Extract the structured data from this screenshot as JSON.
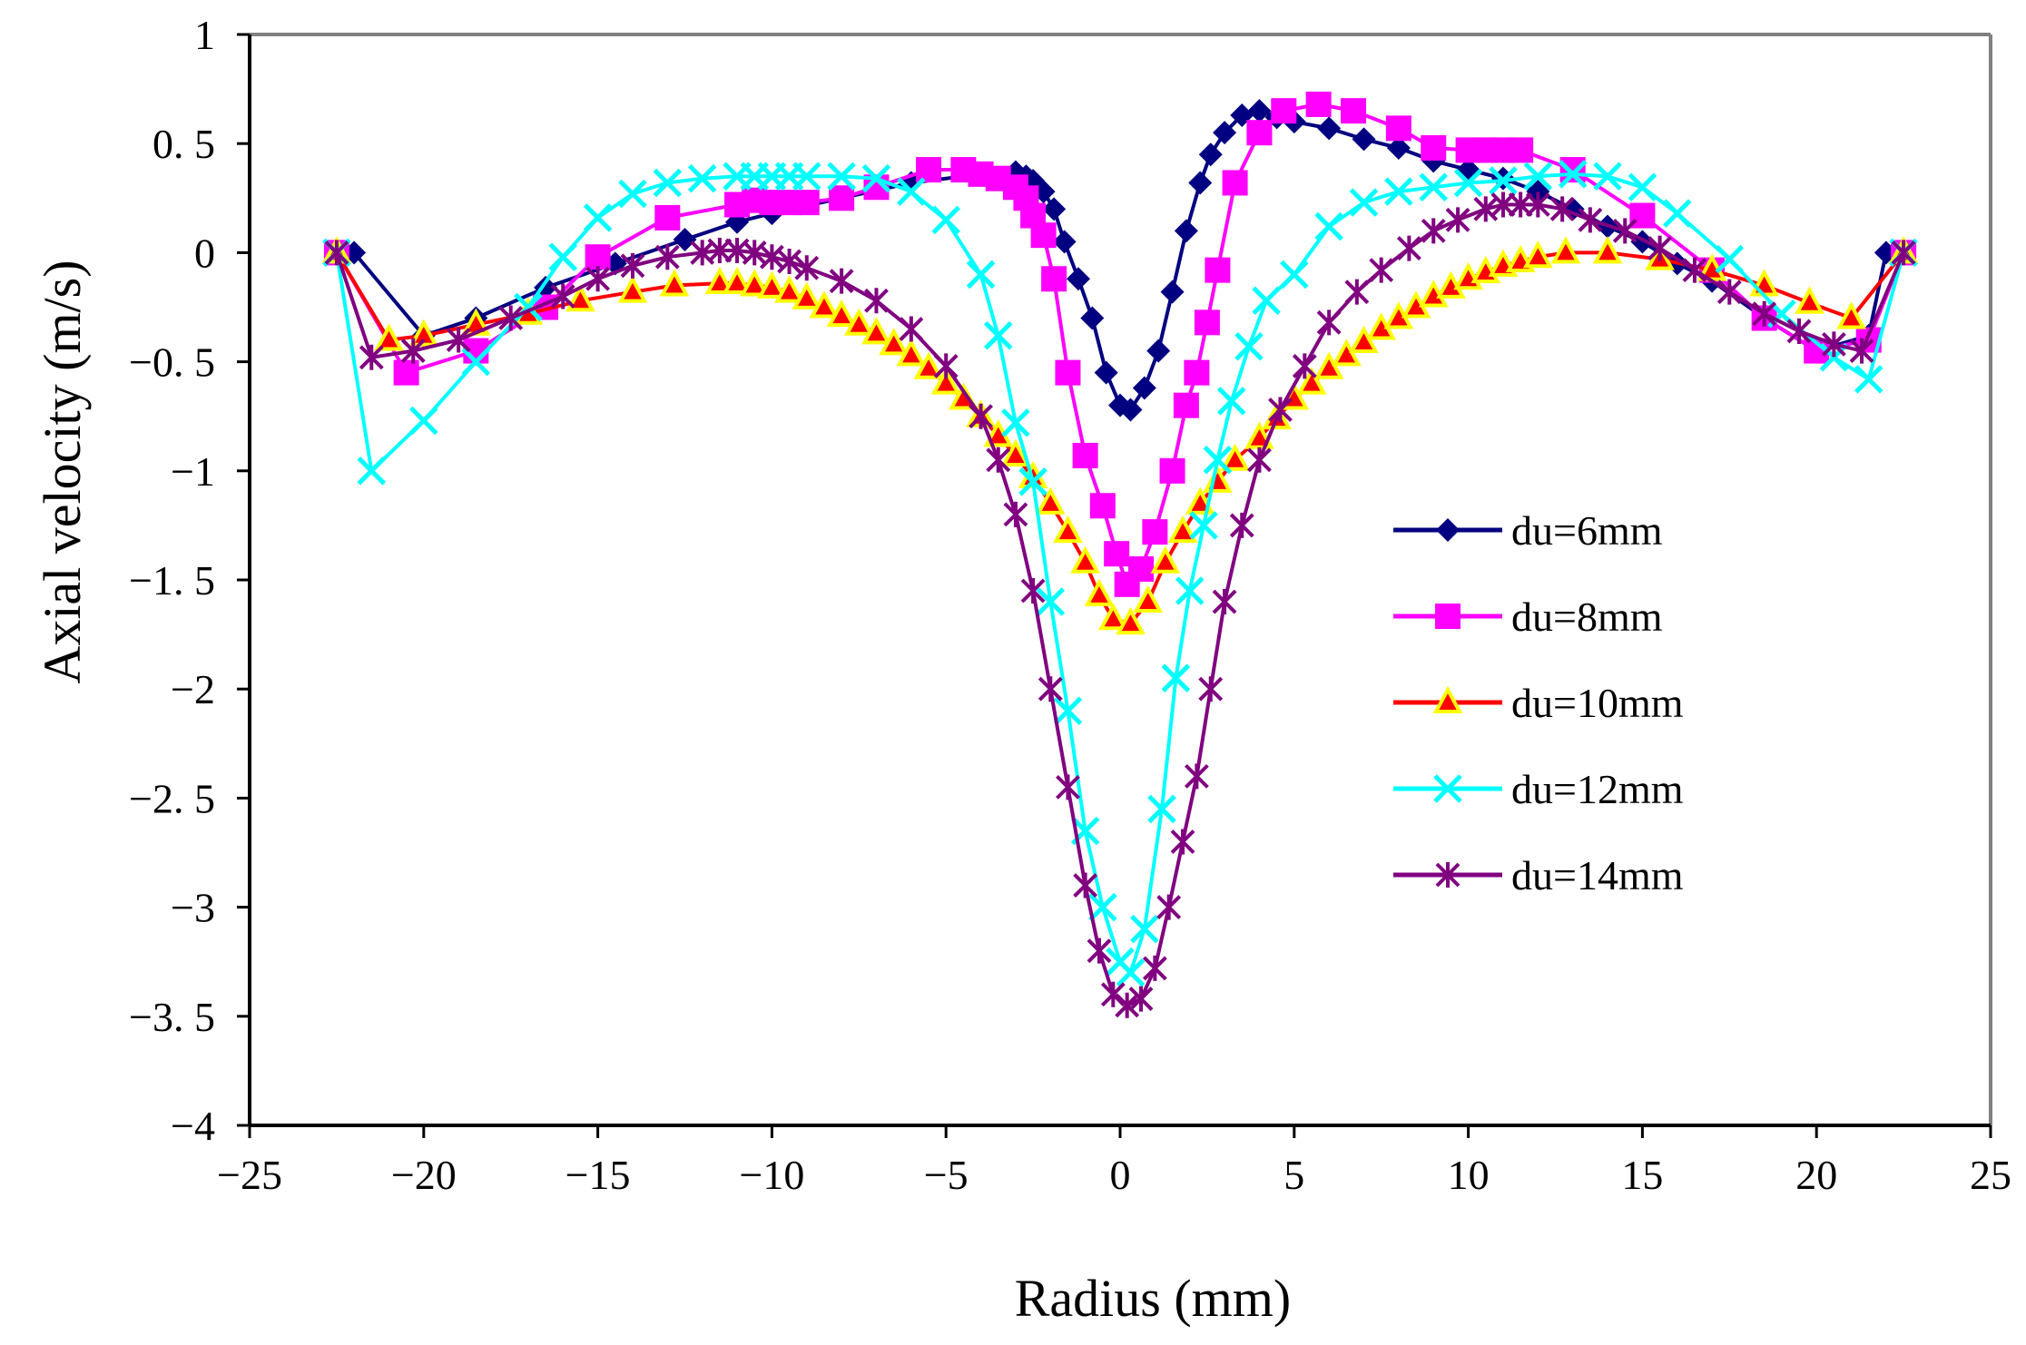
{
  "chart_data": {
    "type": "line",
    "title": "",
    "xlabel": "Radius (mm)",
    "ylabel": "Axial velocity (m/s)",
    "xlim": [
      -25,
      25
    ],
    "ylim": [
      -4,
      1
    ],
    "xticks": [
      -25,
      -20,
      -15,
      -10,
      -5,
      0,
      5,
      10,
      15,
      20,
      25
    ],
    "xtick_labels": [
      "−25",
      "−20",
      "−15",
      "−10",
      "−5",
      "0",
      "5",
      "10",
      "15",
      "20",
      "25"
    ],
    "yticks": [
      1,
      0.5,
      0,
      -0.5,
      -1,
      -1.5,
      -2,
      -2.5,
      -3,
      -3.5,
      -4
    ],
    "ytick_labels": [
      "1",
      "0. 5",
      "0",
      "−0. 5",
      "−1",
      "−1. 5",
      "−2",
      "−2. 5",
      "−3",
      "−3. 5",
      "−4"
    ],
    "grid": false,
    "legend_position": "right",
    "series": [
      {
        "name": "du=6mm",
        "color": "#000080",
        "marker": "diamond",
        "x": [
          -22.5,
          -22,
          -20,
          -18.5,
          -16.5,
          -14.5,
          -12.5,
          -11,
          -10,
          -8,
          -6,
          -4,
          -3,
          -2.7,
          -2.5,
          -2.2,
          -1.9,
          -1.6,
          -1.2,
          -0.8,
          -0.4,
          0,
          0.3,
          0.7,
          1.1,
          1.5,
          1.9,
          2.3,
          2.6,
          3,
          3.5,
          4,
          4.5,
          5,
          6,
          7,
          8,
          9,
          10,
          11,
          12,
          13,
          14,
          15,
          16,
          17,
          18.5,
          20,
          21.5,
          22,
          22.5
        ],
        "y": [
          0,
          0,
          -0.38,
          -0.3,
          -0.16,
          -0.05,
          0.06,
          0.14,
          0.18,
          0.25,
          0.32,
          0.36,
          0.37,
          0.35,
          0.33,
          0.28,
          0.2,
          0.05,
          -0.12,
          -0.3,
          -0.55,
          -0.7,
          -0.72,
          -0.62,
          -0.45,
          -0.18,
          0.1,
          0.32,
          0.45,
          0.55,
          0.63,
          0.65,
          0.62,
          0.6,
          0.57,
          0.52,
          0.48,
          0.42,
          0.38,
          0.34,
          0.28,
          0.2,
          0.12,
          0.05,
          -0.05,
          -0.13,
          -0.3,
          -0.45,
          -0.38,
          0,
          0
        ]
      },
      {
        "name": "du=8mm",
        "color": "#FF00FF",
        "marker": "square",
        "x": [
          -22.5,
          -20.5,
          -18.5,
          -16.5,
          -15,
          -13,
          -11,
          -10.5,
          -10,
          -9.5,
          -9,
          -8,
          -7,
          -5.5,
          -4.5,
          -4,
          -3.5,
          -3,
          -2.7,
          -2.5,
          -2.2,
          -1.9,
          -1.5,
          -1,
          -0.5,
          -0.1,
          0.2,
          0.6,
          1,
          1.5,
          1.9,
          2.2,
          2.5,
          2.8,
          3.3,
          4,
          4.7,
          5.7,
          6.7,
          8,
          9,
          10,
          10.5,
          11,
          11.5,
          13,
          15,
          17,
          18.5,
          20,
          21.5,
          22.5
        ],
        "y": [
          0,
          -0.55,
          -0.45,
          -0.25,
          -0.02,
          0.16,
          0.22,
          0.24,
          0.23,
          0.23,
          0.23,
          0.25,
          0.3,
          0.38,
          0.38,
          0.36,
          0.34,
          0.3,
          0.25,
          0.17,
          0.08,
          -0.12,
          -0.55,
          -0.93,
          -1.16,
          -1.38,
          -1.52,
          -1.45,
          -1.28,
          -1.0,
          -0.7,
          -0.55,
          -0.32,
          -0.08,
          0.32,
          0.55,
          0.65,
          0.68,
          0.65,
          0.57,
          0.48,
          0.47,
          0.47,
          0.47,
          0.47,
          0.38,
          0.17,
          -0.08,
          -0.3,
          -0.45,
          -0.4,
          0
        ]
      },
      {
        "name": "du=10mm",
        "color": "#FF0000",
        "marker": "triangle",
        "x": [
          -22.5,
          -21,
          -20,
          -18.5,
          -17,
          -15.5,
          -14,
          -12.8,
          -11.5,
          -11,
          -10.5,
          -10,
          -9.5,
          -9,
          -8.5,
          -8,
          -7.5,
          -7,
          -6.5,
          -6,
          -5.5,
          -5,
          -4.5,
          -4,
          -3.5,
          -3,
          -2.5,
          -2,
          -1.5,
          -1,
          -0.6,
          -0.2,
          0.3,
          0.8,
          1.3,
          1.8,
          2.3,
          2.8,
          3.3,
          4,
          4.5,
          5,
          5.5,
          6,
          6.5,
          7,
          7.5,
          8,
          8.5,
          9,
          9.5,
          10,
          10.5,
          11,
          11.5,
          12,
          12.8,
          14,
          15.5,
          17,
          18.5,
          19.8,
          21,
          22.5
        ],
        "y": [
          0,
          -0.4,
          -0.38,
          -0.33,
          -0.28,
          -0.22,
          -0.18,
          -0.15,
          -0.14,
          -0.14,
          -0.15,
          -0.16,
          -0.18,
          -0.21,
          -0.25,
          -0.29,
          -0.33,
          -0.37,
          -0.42,
          -0.47,
          -0.53,
          -0.6,
          -0.67,
          -0.75,
          -0.84,
          -0.93,
          -1.03,
          -1.15,
          -1.28,
          -1.42,
          -1.57,
          -1.68,
          -1.7,
          -1.6,
          -1.42,
          -1.28,
          -1.15,
          -1.05,
          -0.95,
          -0.85,
          -0.76,
          -0.67,
          -0.6,
          -0.53,
          -0.47,
          -0.41,
          -0.35,
          -0.3,
          -0.25,
          -0.2,
          -0.16,
          -0.12,
          -0.09,
          -0.06,
          -0.04,
          -0.02,
          0.0,
          0.0,
          -0.03,
          -0.08,
          -0.15,
          -0.23,
          -0.3,
          0
        ]
      },
      {
        "name": "du=12mm",
        "color": "#00FFFF",
        "marker": "x",
        "x": [
          -22.5,
          -21.5,
          -20,
          -18.5,
          -17,
          -16,
          -15,
          -14,
          -13,
          -12,
          -11,
          -10.5,
          -10,
          -9.5,
          -9,
          -8,
          -7,
          -6,
          -5,
          -4,
          -3.5,
          -3,
          -2.5,
          -2,
          -1.5,
          -1,
          -0.5,
          0,
          0.3,
          0.7,
          1.2,
          1.6,
          2,
          2.4,
          2.8,
          3.2,
          3.7,
          4.2,
          5,
          6,
          7,
          8,
          9,
          10,
          11,
          12,
          13,
          14,
          15,
          16,
          17.5,
          19,
          20.5,
          21.5,
          22.5
        ],
        "y": [
          0,
          -1.0,
          -0.77,
          -0.5,
          -0.25,
          -0.02,
          0.16,
          0.27,
          0.32,
          0.34,
          0.35,
          0.35,
          0.35,
          0.35,
          0.35,
          0.35,
          0.34,
          0.28,
          0.15,
          -0.1,
          -0.38,
          -0.78,
          -1.05,
          -1.6,
          -2.1,
          -2.65,
          -3.0,
          -3.25,
          -3.3,
          -3.1,
          -2.55,
          -1.95,
          -1.55,
          -1.25,
          -0.95,
          -0.68,
          -0.43,
          -0.22,
          -0.1,
          0.12,
          0.23,
          0.28,
          0.3,
          0.32,
          0.33,
          0.35,
          0.36,
          0.35,
          0.3,
          0.18,
          -0.03,
          -0.28,
          -0.48,
          -0.58,
          0
        ]
      },
      {
        "name": "du=14mm",
        "color": "#800080",
        "marker": "star",
        "x": [
          -22.5,
          -21.5,
          -20.3,
          -19,
          -17.5,
          -16,
          -15,
          -14,
          -13,
          -12,
          -11.5,
          -11,
          -10.5,
          -10,
          -9.5,
          -9,
          -8,
          -7,
          -6,
          -5,
          -4,
          -3.5,
          -3,
          -2.5,
          -2,
          -1.5,
          -1,
          -0.6,
          -0.2,
          0.2,
          0.6,
          1,
          1.4,
          1.8,
          2.2,
          2.6,
          3,
          3.5,
          4,
          4.6,
          5.3,
          6,
          6.8,
          7.5,
          8.3,
          9,
          9.7,
          10.5,
          11,
          11.5,
          12,
          12.7,
          13.5,
          14.5,
          15.5,
          16.5,
          17.5,
          18.5,
          19.5,
          20.5,
          21.3,
          22.5
        ],
        "y": [
          0,
          -0.48,
          -0.45,
          -0.4,
          -0.3,
          -0.2,
          -0.12,
          -0.06,
          -0.02,
          0.0,
          0.01,
          0.01,
          0.0,
          -0.02,
          -0.04,
          -0.07,
          -0.13,
          -0.22,
          -0.35,
          -0.52,
          -0.75,
          -0.95,
          -1.2,
          -1.55,
          -2.0,
          -2.45,
          -2.9,
          -3.2,
          -3.4,
          -3.45,
          -3.42,
          -3.28,
          -3.0,
          -2.7,
          -2.4,
          -2.0,
          -1.6,
          -1.25,
          -0.95,
          -0.72,
          -0.52,
          -0.32,
          -0.18,
          -0.08,
          0.02,
          0.1,
          0.15,
          0.2,
          0.22,
          0.22,
          0.22,
          0.2,
          0.15,
          0.1,
          0.02,
          -0.08,
          -0.18,
          -0.28,
          -0.36,
          -0.42,
          -0.45,
          0
        ]
      }
    ]
  }
}
